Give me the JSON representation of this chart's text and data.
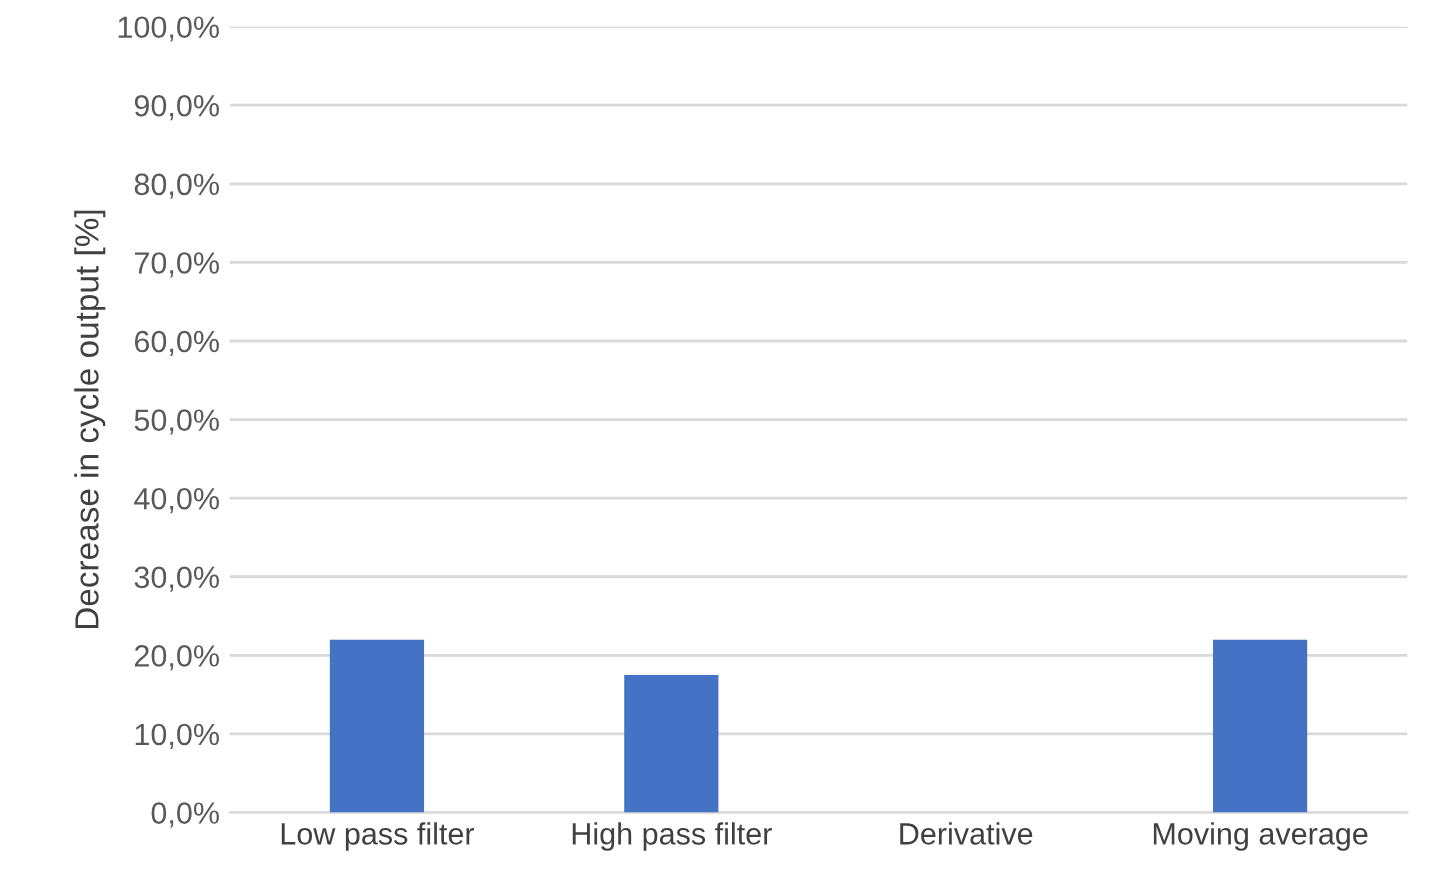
{
  "chart_data": {
    "type": "bar",
    "ylabel": "Decrease in cycle output [%]",
    "categories": [
      "Low pass filter",
      "High pass filter",
      "Derivative",
      "Moving average"
    ],
    "values": [
      22,
      17.5,
      0,
      22
    ],
    "color": "#4472c4",
    "ylim": [
      0,
      100
    ],
    "yticks": [
      {
        "value": 0,
        "label": "0,0%"
      },
      {
        "value": 10,
        "label": "10,0%"
      },
      {
        "value": 20,
        "label": "20,0%"
      },
      {
        "value": 30,
        "label": "30,0%"
      },
      {
        "value": 40,
        "label": "40,0%"
      },
      {
        "value": 50,
        "label": "50,0%"
      },
      {
        "value": 60,
        "label": "60,0%"
      },
      {
        "value": 70,
        "label": "70,0%"
      },
      {
        "value": 80,
        "label": "80,0%"
      },
      {
        "value": 90,
        "label": "90,0%"
      },
      {
        "value": 100,
        "label": "100,0%"
      }
    ],
    "grid": "y"
  }
}
